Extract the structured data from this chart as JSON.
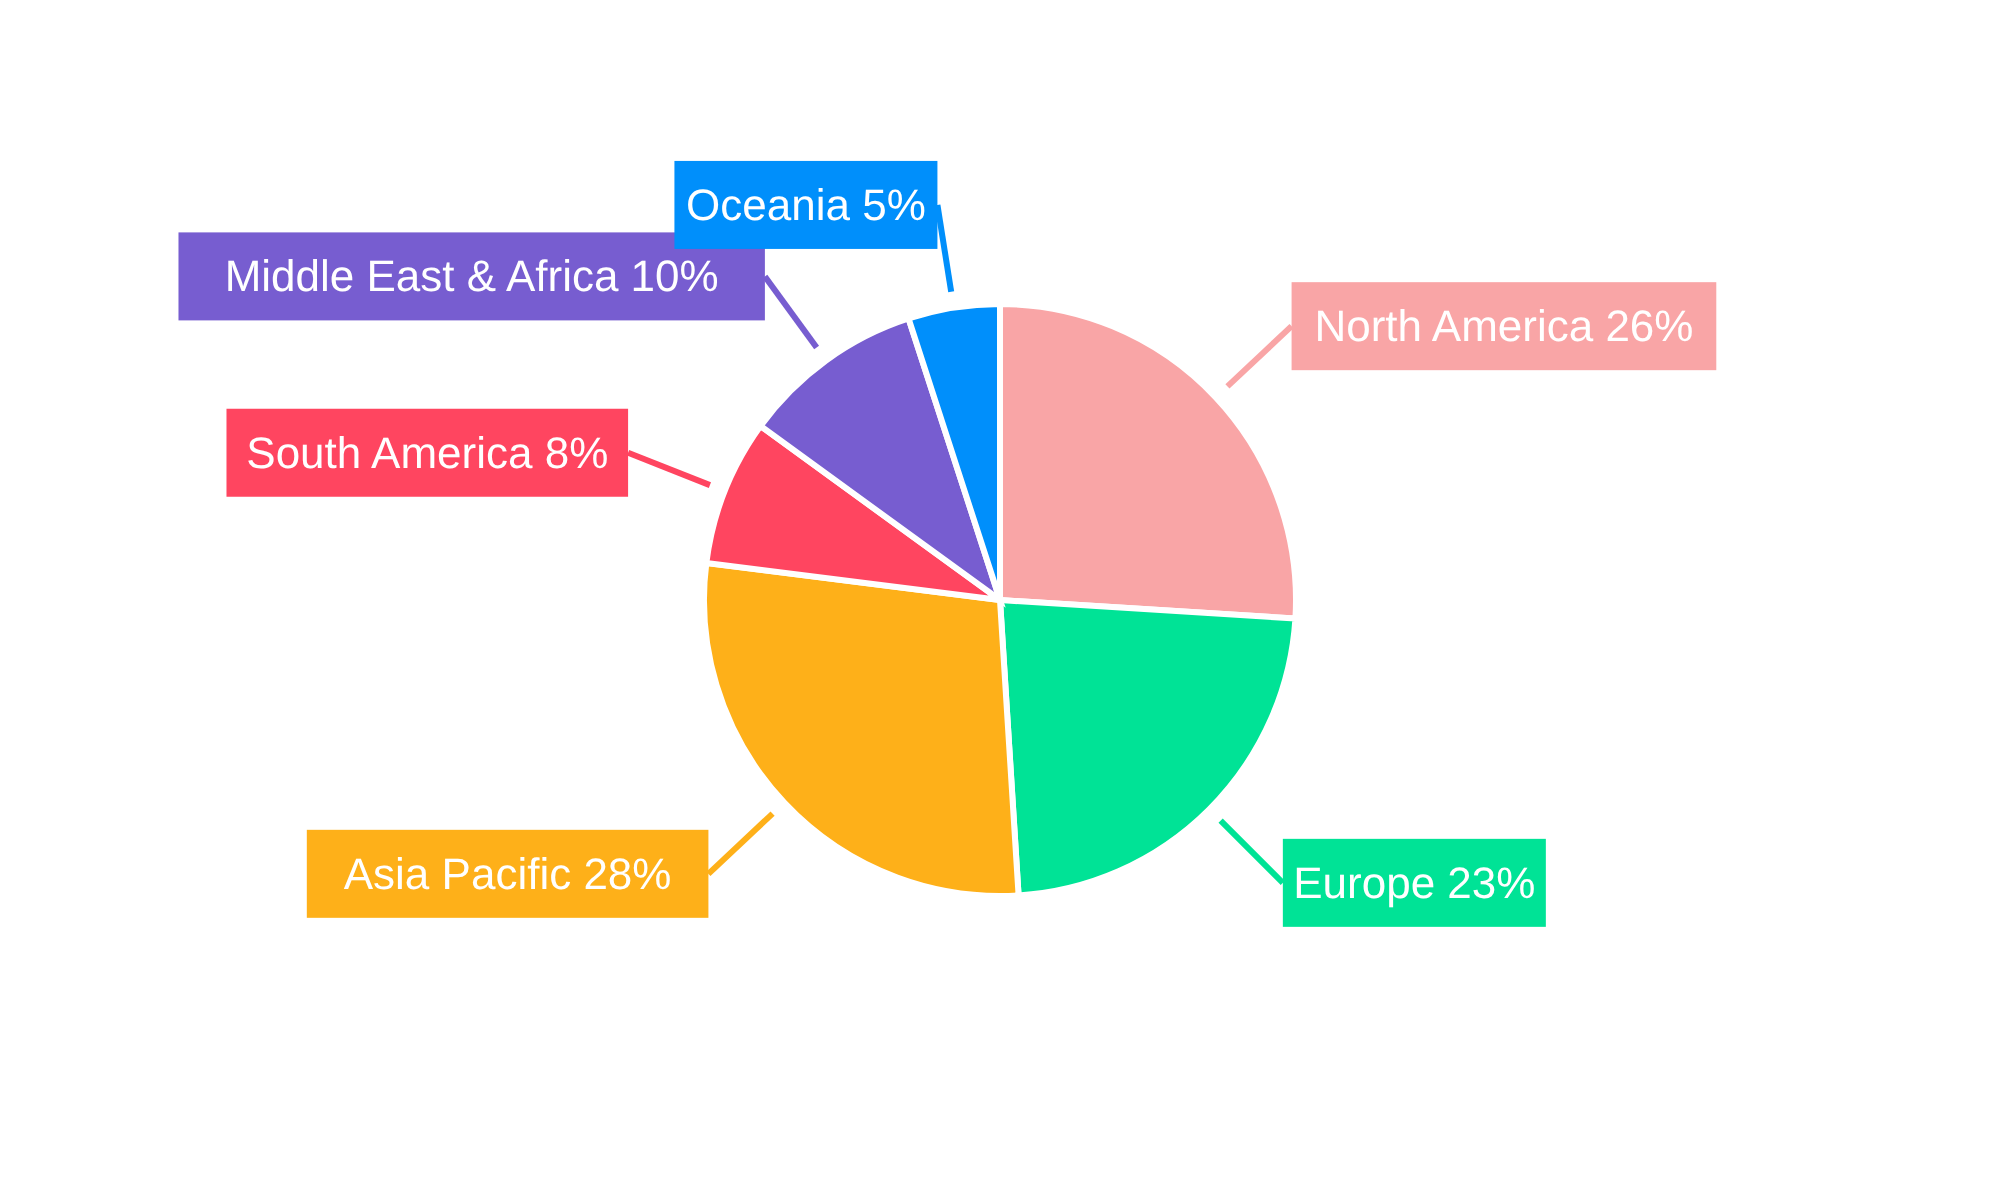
{
  "chart_data": {
    "type": "pie",
    "categories": [
      "North America",
      "Europe",
      "Asia Pacific",
      "South America",
      "Middle East & Africa",
      "Oceania"
    ],
    "values": [
      26,
      23,
      28,
      8,
      10,
      5
    ],
    "value_labels": [
      "26%",
      "23%",
      "28%",
      "8%",
      "10%",
      "5%"
    ],
    "colors": [
      "#f9a5a6",
      "#00e396",
      "#feb019",
      "#ff4560",
      "#775dd0",
      "#008ffb"
    ]
  }
}
